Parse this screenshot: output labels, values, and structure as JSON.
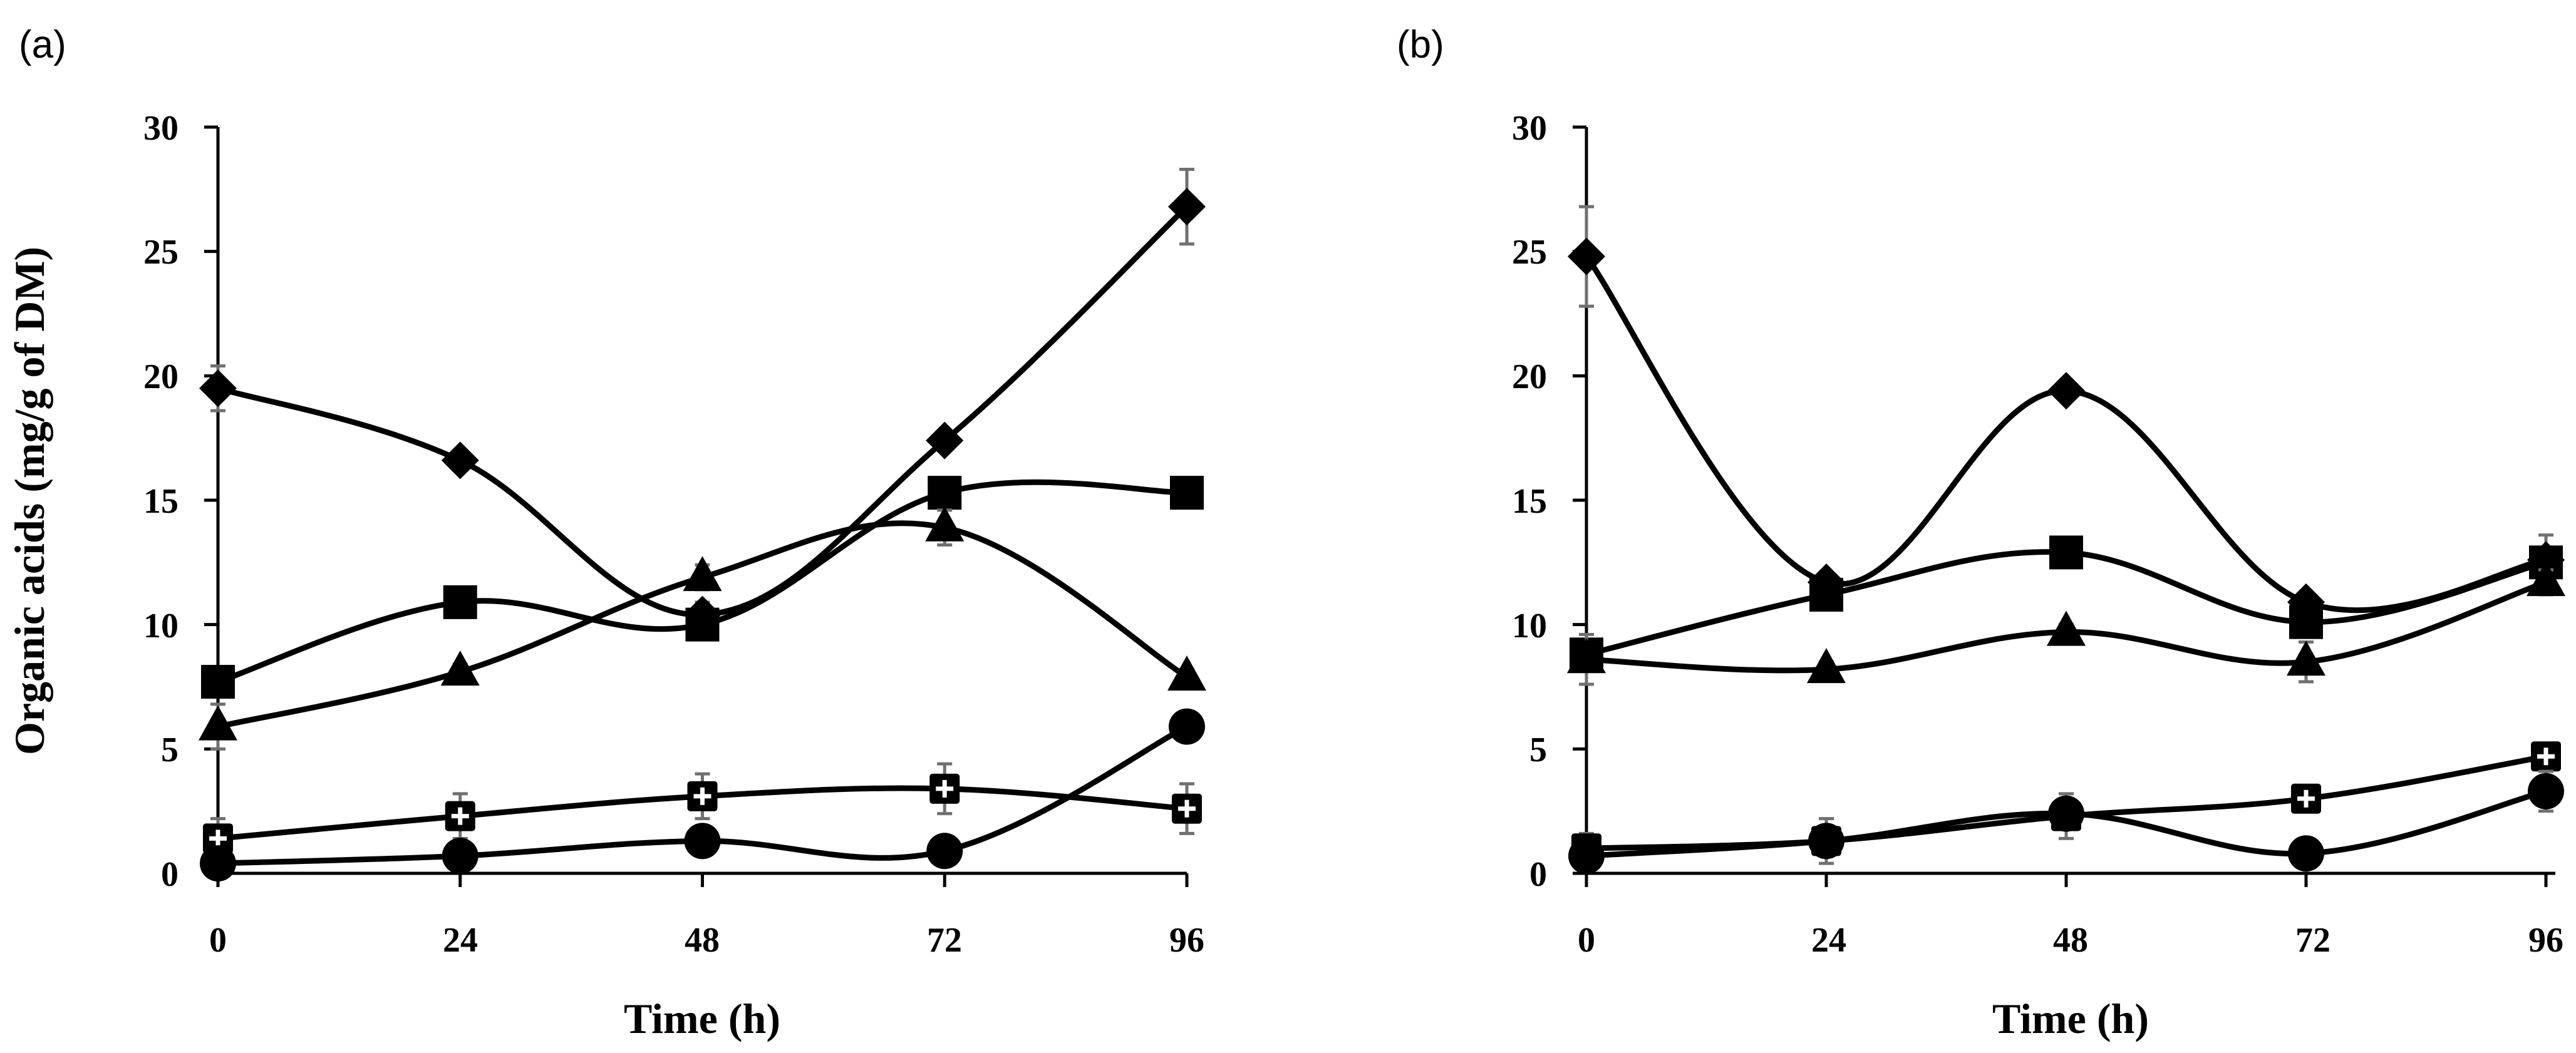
{
  "figure": {
    "panels": [
      {
        "label": "(a)",
        "chart_data": {
          "type": "line",
          "title": "",
          "xlabel": "Time (h)",
          "ylabel": "Organic acids (mg/g of DM)",
          "x": [
            0,
            24,
            48,
            72,
            96
          ],
          "xticks": [
            "0",
            "24",
            "48",
            "72",
            "96"
          ],
          "ylim": [
            0,
            30
          ],
          "yticks": [
            "0",
            "5",
            "10",
            "15",
            "20",
            "25",
            "30"
          ],
          "series": [
            {
              "name": "diamond",
              "marker": "diamond",
              "values": [
                19.5,
                16.6,
                10.4,
                17.4,
                26.8
              ],
              "errors": [
                0.9,
                0.4,
                0.5,
                0.4,
                1.5
              ]
            },
            {
              "name": "square",
              "marker": "square",
              "values": [
                7.7,
                10.9,
                10.0,
                15.3,
                15.3
              ],
              "errors": [
                0.4,
                0.4,
                0.4,
                0.4,
                0.4
              ]
            },
            {
              "name": "triangle",
              "marker": "triangle",
              "values": [
                5.9,
                8.1,
                11.9,
                13.9,
                7.9
              ],
              "errors": [
                0.9,
                0.3,
                0.5,
                0.7,
                0.3
              ]
            },
            {
              "name": "cross-square",
              "marker": "cross-square",
              "values": [
                1.4,
                2.3,
                3.1,
                3.4,
                2.6
              ],
              "errors": [
                0.8,
                0.9,
                0.9,
                1.0,
                1.0
              ]
            },
            {
              "name": "circle",
              "marker": "circle",
              "values": [
                0.4,
                0.7,
                1.3,
                0.9,
                5.9
              ],
              "errors": [
                0.2,
                0.2,
                0.3,
                0.2,
                0.3
              ]
            }
          ]
        }
      },
      {
        "label": "(b)",
        "chart_data": {
          "type": "line",
          "title": "",
          "xlabel": "Time (h)",
          "ylabel": "",
          "x": [
            0,
            24,
            48,
            72,
            96
          ],
          "xticks": [
            "0",
            "24",
            "48",
            "72",
            "96"
          ],
          "ylim": [
            0,
            30
          ],
          "yticks": [
            "0",
            "5",
            "10",
            "15",
            "20",
            "25",
            "30"
          ],
          "series": [
            {
              "name": "diamond",
              "marker": "diamond",
              "values": [
                24.8,
                11.7,
                19.4,
                10.9,
                12.6
              ],
              "errors": [
                2.0,
                0.3,
                0.3,
                0.4,
                1.0
              ]
            },
            {
              "name": "square",
              "marker": "square",
              "values": [
                8.8,
                11.2,
                12.9,
                10.1,
                12.5
              ],
              "errors": [
                0.4,
                0.4,
                0.4,
                0.4,
                0.5
              ]
            },
            {
              "name": "triangle",
              "marker": "triangle",
              "values": [
                8.6,
                8.2,
                9.7,
                8.5,
                11.7
              ],
              "errors": [
                1.0,
                0.3,
                0.3,
                0.8,
                0.5
              ]
            },
            {
              "name": "cross-square",
              "marker": "cross-square",
              "values": [
                1.0,
                1.3,
                2.3,
                3.0,
                4.7
              ],
              "errors": [
                0.6,
                0.9,
                0.9,
                0.3,
                0.3
              ]
            },
            {
              "name": "circle",
              "marker": "circle",
              "values": [
                0.7,
                1.3,
                2.4,
                0.8,
                3.3
              ],
              "errors": [
                0.3,
                0.3,
                0.3,
                0.4,
                0.8
              ]
            }
          ]
        }
      }
    ]
  }
}
